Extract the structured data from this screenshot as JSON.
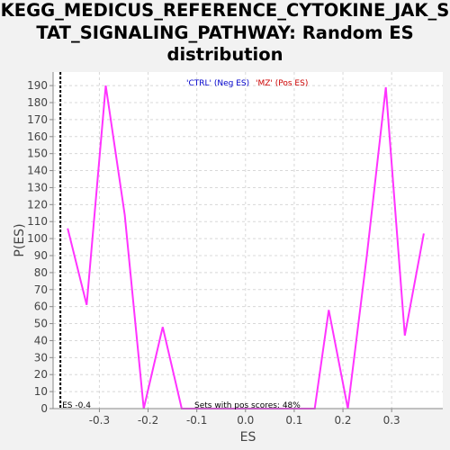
{
  "title_lines": [
    "KEGG_MEDICUS_REFERENCE_CYTOKINE_JAK_S",
    "TAT_SIGNALING_PATHWAY: Random ES",
    "distribution"
  ],
  "colors": {
    "line": "#ff33ff",
    "neg": "#0000cc",
    "pos": "#cc0000",
    "marker": "#000000",
    "bg": "#ffffff",
    "grid": "#d8d8d8"
  },
  "chart_data": {
    "type": "line",
    "title": "KEGG_MEDICUS_REFERENCE_CYTOKINE_JAK_STAT_SIGNALING_PATHWAY: Random ES distribution",
    "xlabel": "ES",
    "ylabel": "P(ES)",
    "xlim": [
      -0.395,
      0.405
    ],
    "ylim": [
      0,
      198
    ],
    "x_ticks": [
      -0.3,
      -0.2,
      -0.1,
      0.0,
      0.1,
      0.2,
      0.3
    ],
    "x_tick_labels": [
      "-0.3",
      "-0.2",
      "-0.1",
      "0.0",
      "0.1",
      "0.2",
      "0.3"
    ],
    "y_ticks": [
      0,
      10,
      20,
      30,
      40,
      50,
      60,
      70,
      80,
      90,
      100,
      110,
      120,
      130,
      140,
      150,
      160,
      170,
      180,
      190
    ],
    "grid": true,
    "series": [
      {
        "x": [
          -0.365,
          -0.326,
          -0.287,
          -0.248,
          -0.209,
          -0.17,
          -0.131,
          -0.092,
          -0.053,
          -0.014,
          0.025,
          0.064,
          0.103,
          0.142,
          0.171,
          0.21,
          0.249,
          0.288,
          0.327,
          0.366
        ],
        "values": [
          106,
          61,
          190,
          114,
          0,
          48,
          0,
          0,
          0,
          0,
          0,
          0,
          0,
          0,
          58,
          0,
          90,
          189,
          43,
          103
        ]
      }
    ],
    "legend": {
      "neg_label": "'CTRL' (Neg ES)",
      "pos_label": "'MZ' (Pos ES)",
      "position": "top-center"
    },
    "marker_line": {
      "x": -0.38,
      "label": "ES -0.4",
      "style": "dashed"
    },
    "annotation": "Sets with pos scores: 48%"
  }
}
